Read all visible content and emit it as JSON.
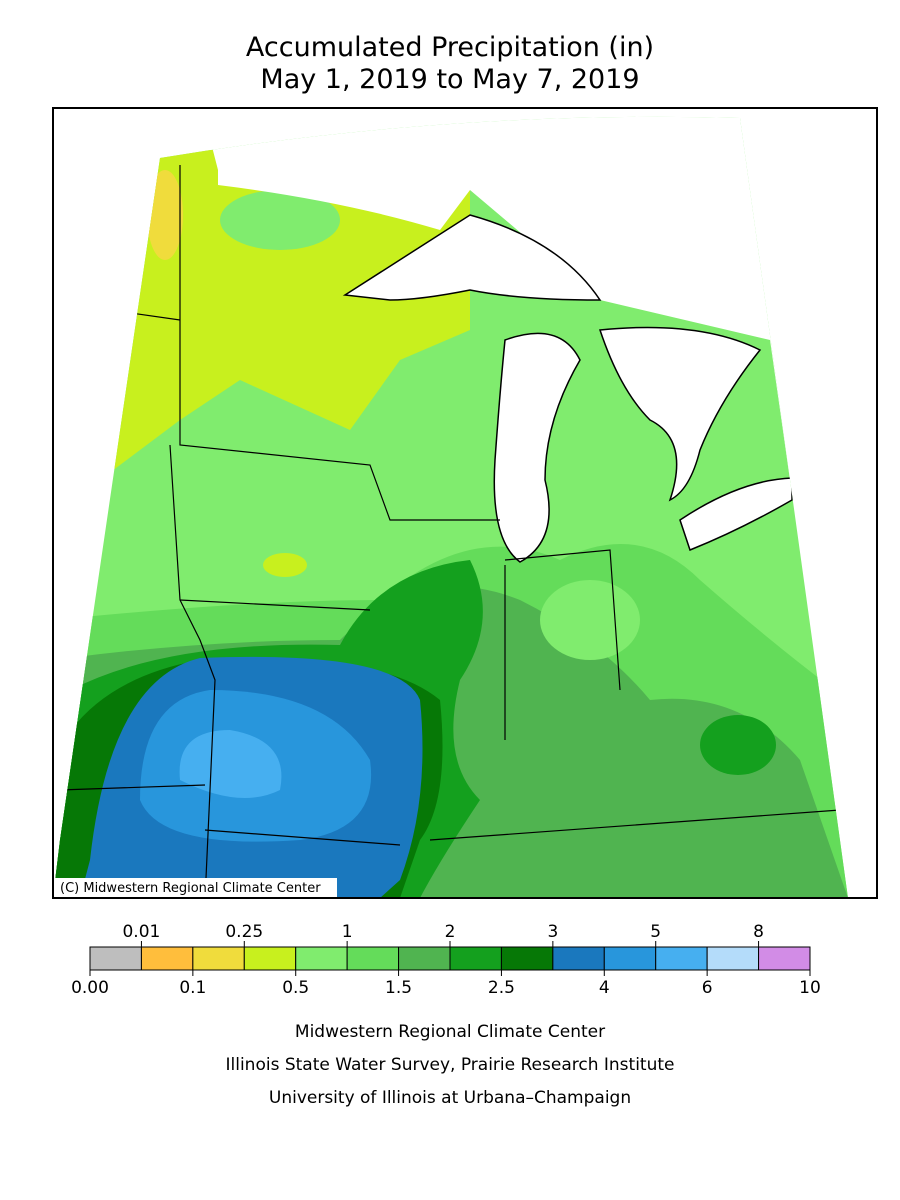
{
  "header": {
    "title": "Accumulated Precipitation (in)",
    "subtitle": "May 1, 2019 to May 7, 2019"
  },
  "map": {
    "copyright": "(C) Midwestern Regional Climate Center"
  },
  "legend": {
    "colors": [
      "#bebebe",
      "#ffbe3c",
      "#f0dc3c",
      "#c8f01e",
      "#80ec6e",
      "#64dc5a",
      "#50b450",
      "#14a01e",
      "#067806",
      "#1a78be",
      "#2896dc",
      "#46aff0",
      "#b4dcfa",
      "#d28ce6"
    ],
    "top_labels": [
      "0.01",
      "0.25",
      "1",
      "2",
      "3",
      "5",
      "8"
    ],
    "bottom_labels": [
      "0.00",
      "0.1",
      "0.5",
      "1.5",
      "2.5",
      "4",
      "6",
      "10"
    ]
  },
  "footer": {
    "lines": [
      "Midwestern Regional Climate Center",
      "Illinois State Water Survey, Prairie Research Institute",
      "University of Illinois at Urbana–Champaign"
    ]
  }
}
